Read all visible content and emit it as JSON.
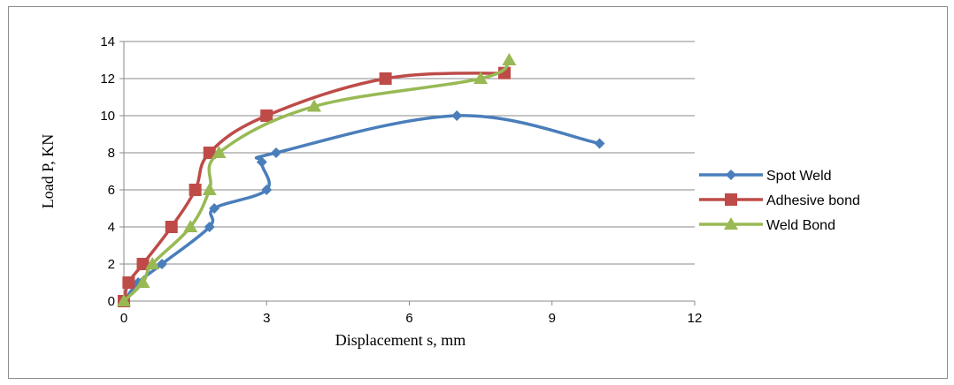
{
  "chart_data": {
    "type": "line",
    "title": "",
    "xlabel": "Displacement s, mm",
    "ylabel": "Load P, KN",
    "xlim": [
      0,
      12
    ],
    "ylim": [
      0,
      14
    ],
    "xticks": [
      0,
      3,
      6,
      9,
      12
    ],
    "yticks": [
      0,
      2,
      4,
      6,
      8,
      10,
      12,
      14
    ],
    "grid": "horizontal",
    "legend_position": "right",
    "series": [
      {
        "name": "Spot Weld",
        "color": "#4a7ebb",
        "marker": "diamond",
        "points": [
          [
            0,
            0
          ],
          [
            0.3,
            1
          ],
          [
            0.8,
            2
          ],
          [
            1.8,
            4
          ],
          [
            1.9,
            5
          ],
          [
            3.0,
            6
          ],
          [
            2.9,
            7.5
          ],
          [
            3.2,
            8
          ],
          [
            7.0,
            10
          ],
          [
            10.0,
            8.5
          ]
        ]
      },
      {
        "name": "Adhesive bond",
        "color": "#be4b48",
        "marker": "square",
        "points": [
          [
            0,
            0
          ],
          [
            0.1,
            1
          ],
          [
            0.4,
            2
          ],
          [
            1.0,
            4
          ],
          [
            1.5,
            6
          ],
          [
            1.8,
            8
          ],
          [
            3.0,
            10
          ],
          [
            5.5,
            12
          ],
          [
            8.0,
            12.3
          ]
        ]
      },
      {
        "name": "Weld Bond",
        "color": "#98b954",
        "marker": "triangle",
        "points": [
          [
            0,
            0
          ],
          [
            0.4,
            1
          ],
          [
            0.6,
            2
          ],
          [
            1.4,
            4
          ],
          [
            1.8,
            6
          ],
          [
            2.0,
            8
          ],
          [
            4.0,
            10.5
          ],
          [
            7.5,
            12
          ],
          [
            8.1,
            13
          ]
        ]
      }
    ]
  }
}
